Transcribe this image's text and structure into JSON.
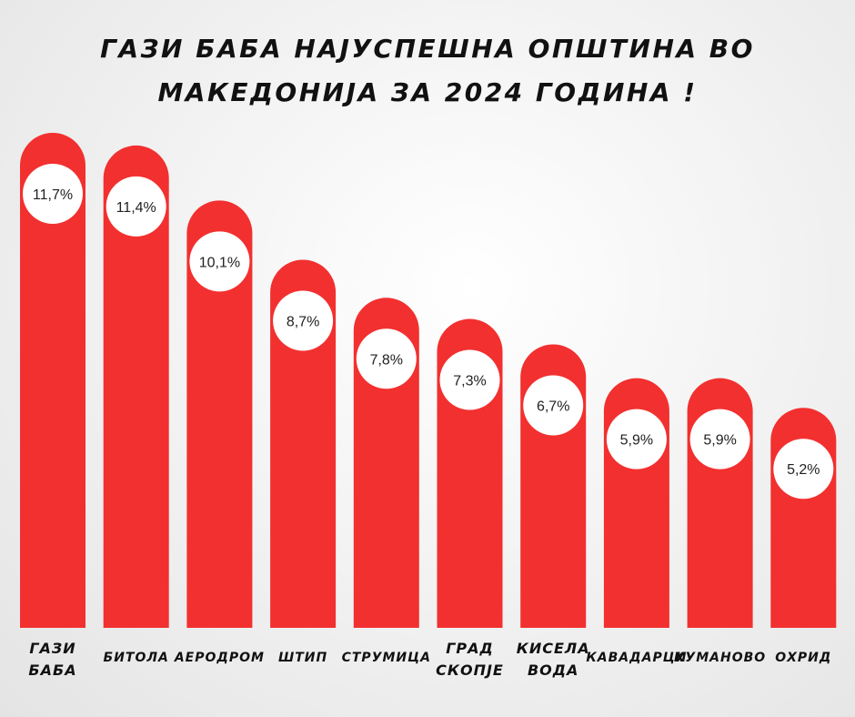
{
  "chart_data": {
    "type": "bar",
    "title_lines": [
      "ГАЗИ БАБА НАЈУСПЕШНА ОПШТИНА ВО",
      "МАКЕДОНИЈА ЗА 2024 ГОДИНА !"
    ],
    "categories": [
      [
        "ГАЗИ",
        "БАБА"
      ],
      [
        "БИТОЛА"
      ],
      [
        "АЕРОДРОМ"
      ],
      [
        "ШТИП"
      ],
      [
        "СТРУМИЦА"
      ],
      [
        "ГРАД",
        "СКОПЈЕ"
      ],
      [
        "КИСЕЛА",
        "ВОДА"
      ],
      [
        "КАВАДАРЦИ"
      ],
      [
        "КУМАНОВО"
      ],
      [
        "ОХРИД"
      ]
    ],
    "values": [
      11.7,
      11.4,
      10.1,
      8.7,
      7.8,
      7.3,
      6.7,
      5.9,
      5.9,
      5.2
    ],
    "value_labels": [
      "11,7%",
      "11,4%",
      "10,1%",
      "8,7%",
      "7,8%",
      "7,3%",
      "6,7%",
      "5,9%",
      "5,9%",
      "5,2%"
    ],
    "xlabel": "",
    "ylabel": "",
    "grid": false,
    "legend": "none",
    "colors": {
      "bar": "#f2302f",
      "bubble": "#ffffff",
      "text": "#111111"
    }
  }
}
